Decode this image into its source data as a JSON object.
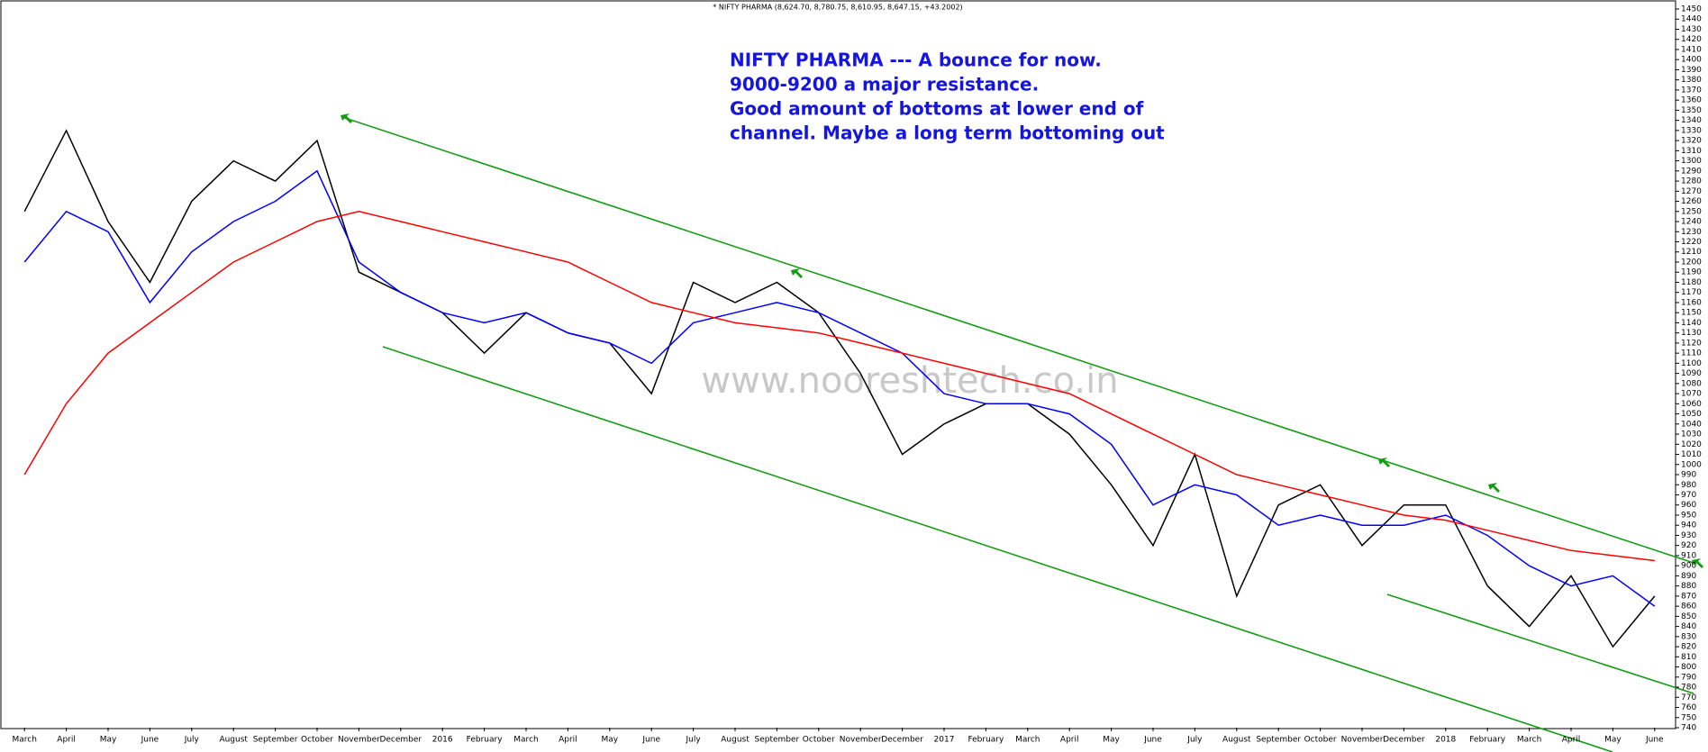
{
  "chart_data": {
    "type": "line",
    "title": "* NIFTY PHARMA (8,624.70, 8,780.75, 8,610.95, 8,647.15, +43.2002)",
    "annotation": [
      "NIFTY PHARMA --- A bounce for now.",
      "9000-9200 a major resistance.",
      "Good amount of bottoms at lower end of",
      "channel. Maybe a long term bottoming out"
    ],
    "watermark": "www.nooreshtech.co.in",
    "categories": [
      "March",
      "April",
      "May",
      "June",
      "July",
      "August",
      "September",
      "October",
      "November",
      "December",
      "2016",
      "February",
      "March",
      "April",
      "May",
      "June",
      "July",
      "August",
      "September",
      "October",
      "November",
      "December",
      "2017",
      "February",
      "March",
      "April",
      "May",
      "June",
      "July",
      "August",
      "September",
      "October",
      "November",
      "December",
      "2018",
      "February",
      "March",
      "April",
      "May",
      "June"
    ],
    "series": [
      {
        "color": "#000000",
        "values": [
          1250,
          1330,
          1240,
          1180,
          1260,
          1300,
          1280,
          1320,
          1190,
          1170,
          1150,
          1110,
          1150,
          1130,
          1120,
          1070,
          1180,
          1160,
          1180,
          1150,
          1090,
          1010,
          1040,
          1060,
          1060,
          1030,
          980,
          920,
          1010,
          870,
          960,
          980,
          920,
          960,
          960,
          880,
          840,
          890,
          820,
          870
        ]
      },
      {
        "color": "#0000ff",
        "values": [
          1200,
          1250,
          1230,
          1160,
          1210,
          1240,
          1260,
          1290,
          1200,
          1170,
          1150,
          1140,
          1150,
          1130,
          1120,
          1100,
          1140,
          1150,
          1160,
          1150,
          1130,
          1110,
          1070,
          1060,
          1060,
          1050,
          1020,
          960,
          980,
          970,
          940,
          950,
          940,
          940,
          950,
          930,
          900,
          880,
          890,
          860
        ]
      },
      {
        "color": "#ff0000",
        "values": [
          990,
          1060,
          1110,
          1140,
          1170,
          1200,
          1220,
          1240,
          1250,
          1240,
          1230,
          1220,
          1210,
          1200,
          1180,
          1160,
          1150,
          1140,
          1135,
          1130,
          1120,
          1110,
          1100,
          1090,
          1080,
          1070,
          1050,
          1030,
          1010,
          990,
          980,
          970,
          960,
          950,
          945,
          935,
          925,
          915,
          910,
          905
        ]
      }
    ],
    "ylim": [
      740,
      1450
    ],
    "yticks": [
      740,
      750,
      760,
      770,
      780,
      790,
      800,
      810,
      820,
      830,
      840,
      850,
      860,
      870,
      880,
      890,
      900,
      910,
      920,
      930,
      940,
      950,
      960,
      970,
      980,
      990,
      1000,
      1010,
      1020,
      1030,
      1040,
      1050,
      1060,
      1070,
      1080,
      1090,
      1100,
      1110,
      1120,
      1130,
      1140,
      1150,
      1160,
      1170,
      1180,
      1190,
      1200,
      1210,
      1220,
      1230,
      1240,
      1250,
      1260,
      1270,
      1280,
      1290,
      1300,
      1310,
      1320,
      1330,
      1340,
      1350,
      1360,
      1370,
      1380,
      1390,
      1400,
      1410,
      1420,
      1430,
      1440,
      1450
    ]
  }
}
